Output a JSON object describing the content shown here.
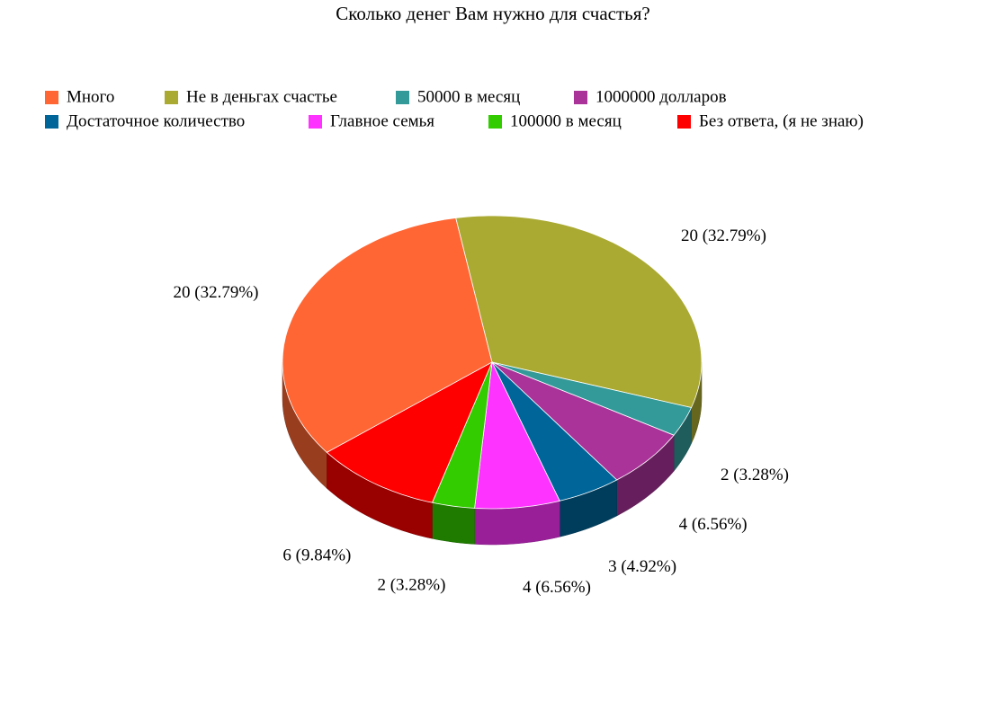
{
  "chart_data": {
    "type": "pie",
    "title": "Сколько денег Вам нужно для счастья?",
    "categories": [
      "Много",
      "Не в деньгах счастье",
      "50000 в месяц",
      "1000000 долларов",
      "Достаточное количество",
      "Главное семья",
      "100000 в месяц",
      "Без ответа, (я не знаю)"
    ],
    "values": [
      20,
      20,
      2,
      4,
      3,
      4,
      2,
      6
    ],
    "value_labels": [
      "20 (32.79%)",
      "20 (32.79%)",
      "2 (3.28%)",
      "4 (6.56%)",
      "3 (4.92%)",
      "4 (6.56%)",
      "2 (3.28%)",
      "6 (9.84%)"
    ],
    "colors": [
      "#ff6633",
      "#aaaa33",
      "#339999",
      "#aa3399",
      "#006699",
      "#ff33ff",
      "#33cc00",
      "#ff0000"
    ]
  }
}
